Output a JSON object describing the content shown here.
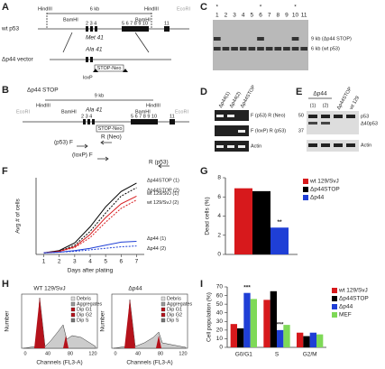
{
  "panel_labels": [
    "A",
    "B",
    "C",
    "D",
    "E",
    "F",
    "G",
    "H",
    "I"
  ],
  "panel_a": {
    "wt_label": "wt p53",
    "vector_label": "Δp44 vector",
    "hind": "HindIII",
    "hind2": "HindIII",
    "bam": "BamHI",
    "bam2": "BamHI",
    "eco": "EcoRI",
    "size": "6 kb",
    "met": "Met 41",
    "ala": "Ala 41",
    "exons": "2 3 4",
    "exons2": "5 6 7 8 9 10",
    "exon11": "11",
    "stopneo": "STOP-Neo",
    "loxp": "loxP"
  },
  "panel_b": {
    "label": "Δp44 STOP",
    "size": "9 kb",
    "hind": "HindIII",
    "hind2": "HindIII",
    "bam": "BamHI",
    "bam2": "BamHI",
    "eco": "EcoRI",
    "eco2": "EcoRI",
    "ala": "Ala 41",
    "exons": "2 3 4",
    "exons2": "5 6 7 8 9 10",
    "exon11": "11",
    "stopneo": "STOP-Neo",
    "primers": [
      "(p53) F",
      "R (Neo)",
      "(loxP) F",
      "R (p53)"
    ]
  },
  "panel_c": {
    "lanes": [
      "1",
      "2",
      "3",
      "4",
      "5",
      "6",
      "7",
      "8",
      "9",
      "10",
      "11"
    ],
    "stars": [
      "*",
      "*",
      "*"
    ],
    "bands": [
      "9 kb (Δp44 STOP)",
      "6 kb (wt p53)"
    ]
  },
  "panel_d": {
    "lanes": [
      "Δp44(1)",
      "Δp44(2)",
      "Δp44STOP"
    ],
    "rows": [
      "F (p53) R (Neo)",
      "F (loxP) R (p53)",
      "Actin"
    ]
  },
  "panel_e": {
    "group": "Δp44",
    "lanes": [
      "(1)",
      "(2)",
      "Δp44STOP",
      "wt 129"
    ],
    "mw": [
      "50",
      "37"
    ],
    "bands": [
      "p53",
      "Δ40p53",
      "Actin"
    ]
  },
  "panel_h": {
    "titles": [
      "WT 129/SvJ",
      "Δp44"
    ],
    "ylabel": "Number",
    "xlabel": "Channels (FL3-A)",
    "ticks": [
      "0",
      "40",
      "80",
      "120"
    ],
    "legend": [
      "Debris",
      "Aggregates",
      "Dip G1",
      "Dip G2",
      "Dip S"
    ]
  },
  "chart_data": [
    {
      "type": "line",
      "xlabel": "Days after plating",
      "ylabel": "Avg # of cells",
      "x": [
        1,
        2,
        3,
        4,
        5,
        6,
        7
      ],
      "xlim": [
        0.5,
        7.5
      ],
      "xticks": [
        1,
        2,
        3,
        4,
        5,
        6,
        7
      ],
      "ylim": [
        0,
        10
      ],
      "legend": "line-end",
      "series": [
        {
          "name": "Δp44STOP (1)",
          "color": "#000000",
          "dashed": false,
          "values": [
            0.2,
            0.5,
            1.5,
            3.6,
            6.2,
            8.2,
            9.3
          ]
        },
        {
          "name": "Δp44STOP (2)",
          "color": "#000000",
          "dashed": true,
          "values": [
            0.2,
            0.4,
            1.2,
            3.0,
            5.4,
            7.6,
            8.7
          ]
        },
        {
          "name": "wt 129/SvJ (1)",
          "color": "#d7191c",
          "dashed": false,
          "values": [
            0.2,
            0.4,
            1.0,
            2.6,
            4.8,
            6.6,
            7.6
          ]
        },
        {
          "name": "wt 129/SvJ (2)",
          "color": "#d7191c",
          "dashed": true,
          "values": [
            0.2,
            0.4,
            0.9,
            2.2,
            4.2,
            6.0,
            7.1
          ]
        },
        {
          "name": "Δp44 (1)",
          "color": "#1f3fd6",
          "dashed": false,
          "values": [
            0.2,
            0.3,
            0.5,
            0.8,
            1.2,
            1.6,
            1.7
          ]
        },
        {
          "name": "Δp44 (2)",
          "color": "#1f3fd6",
          "dashed": true,
          "values": [
            0.2,
            0.3,
            0.4,
            0.6,
            0.8,
            1.0,
            1.1
          ]
        }
      ]
    },
    {
      "type": "bar",
      "ylabel": "Dead cells (%)",
      "ylim": [
        0,
        8
      ],
      "yticks": [
        0,
        2,
        4,
        6,
        8
      ],
      "legend": "right",
      "annotations": [
        "**"
      ],
      "series": [
        {
          "name": "wt 129/SvJ",
          "color": "#d7191c",
          "values": [
            6.9
          ]
        },
        {
          "name": "Δp44STOP",
          "color": "#000000",
          "values": [
            6.6
          ]
        },
        {
          "name": "Δp44",
          "color": "#1f3fd6",
          "values": [
            2.8
          ]
        }
      ]
    },
    {
      "type": "bar",
      "ylabel": "Cell population (%)",
      "categories": [
        "G0/G1",
        "S",
        "G2/M"
      ],
      "ylim": [
        0,
        70
      ],
      "yticks": [
        0,
        10,
        20,
        30,
        40,
        50,
        60,
        70
      ],
      "legend": "right",
      "annotations": [
        "***",
        "***"
      ],
      "series": [
        {
          "name": "wt 129/SvJ",
          "color": "#d7191c",
          "values": [
            27,
            55,
            17
          ]
        },
        {
          "name": "Δp44STOP",
          "color": "#000000",
          "values": [
            22,
            65,
            13
          ]
        },
        {
          "name": "Δp44",
          "color": "#1f3fd6",
          "values": [
            63,
            20,
            17
          ]
        },
        {
          "name": "MEF",
          "color": "#7ed957",
          "values": [
            56,
            26,
            15
          ]
        }
      ]
    }
  ]
}
